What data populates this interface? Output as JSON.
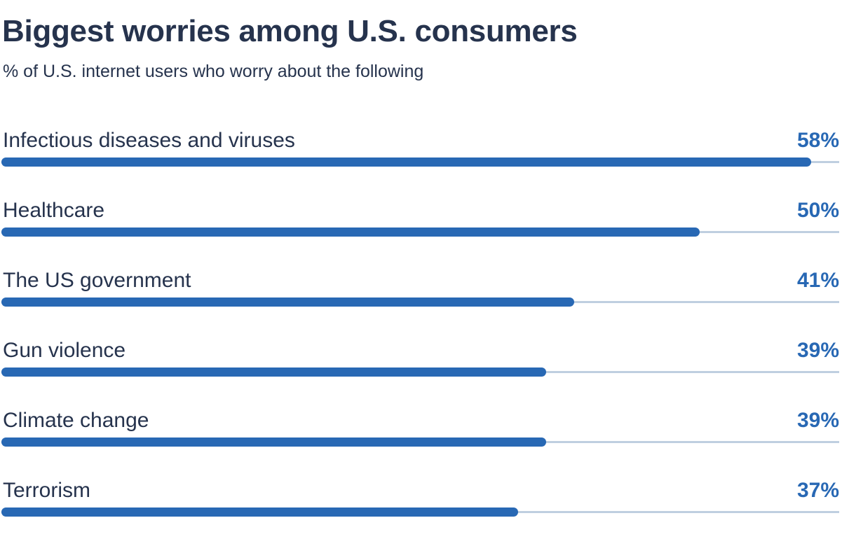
{
  "chart_data": {
    "type": "bar",
    "orientation": "horizontal",
    "title": "Biggest worries among U.S. consumers",
    "subtitle": "% of U.S. internet users who worry about the following",
    "categories": [
      "Infectious diseases and viruses",
      "Healthcare",
      "The US government",
      "Gun violence",
      "Climate change",
      "Terrorism"
    ],
    "values": [
      58,
      50,
      41,
      39,
      39,
      37
    ],
    "value_labels": [
      "58%",
      "50%",
      "41%",
      "39%",
      "39%",
      "37%"
    ],
    "xlim": [
      0,
      60
    ],
    "grid": false,
    "legend": "none",
    "colors": {
      "bar": "#2868b4",
      "track": "#bfcfe0",
      "text": "#26334d",
      "value_text": "#2868b4"
    }
  }
}
